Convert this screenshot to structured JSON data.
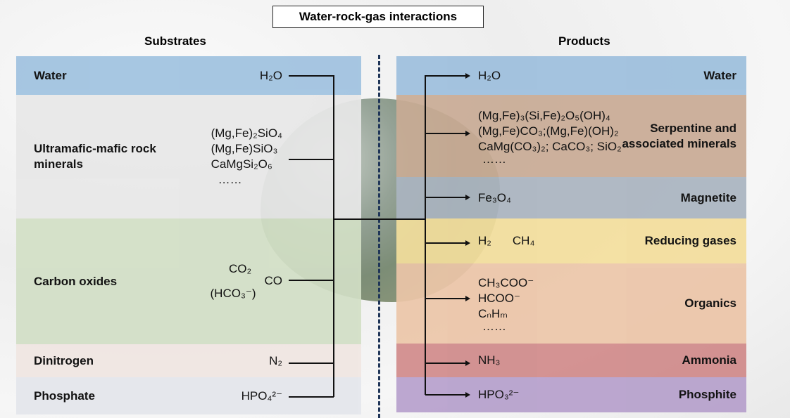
{
  "title": "Water-rock-gas interactions",
  "substrates": {
    "heading": "Substrates",
    "rows": [
      {
        "label": "Water",
        "formulas": [
          "H₂O"
        ],
        "color": "#a0c2e0"
      },
      {
        "label": "Ultramafic-mafic rock minerals",
        "formulas": [
          "(Mg,Fe)₂SiO₄",
          "(Mg,Fe)SiO₃",
          "CaMgSi₂O₆",
          "……"
        ],
        "color": "#e8e8e8"
      },
      {
        "label": "Carbon oxides",
        "formulas": [
          "CO₂",
          "(HCO₃⁻)",
          "CO"
        ],
        "color": "#d2dfc6"
      },
      {
        "label": "Dinitrogen",
        "formulas": [
          "N₂"
        ],
        "color": "#f0e6e2"
      },
      {
        "label": "Phosphate",
        "formulas": [
          "HPO₄²⁻"
        ],
        "color": "#e4e6ec"
      }
    ]
  },
  "products": {
    "heading": "Products",
    "rows": [
      {
        "label": "Water",
        "formulas": [
          "H₂O"
        ],
        "color": "#9dbfdd"
      },
      {
        "label": "Serpentine and associated minerals",
        "formulas": [
          "(Mg,Fe)₃(Si,Fe)₂O₅(OH)₄",
          "(Mg,Fe)CO₃;(Mg,Fe)(OH)₂",
          "CaMg(CO₃)₂; CaCO₃; SiO₂",
          "……"
        ],
        "color": "#c9ab95"
      },
      {
        "label": "Magnetite",
        "formulas": [
          "Fe₃O₄"
        ],
        "color": "#aab4c0"
      },
      {
        "label": "Reducing gases",
        "formulas": [
          "H₂",
          "CH₄"
        ],
        "color": "#f3de9c"
      },
      {
        "label": "Organics",
        "formulas": [
          "CH₃COO⁻",
          "HCOO⁻",
          "CₙHₘ",
          "……"
        ],
        "color": "#ecc5a8"
      },
      {
        "label": "Ammonia",
        "formulas": [
          "NH₃"
        ],
        "color": "#d08a8a"
      },
      {
        "label": "Phosphite",
        "formulas": [
          "HPO₃²⁻"
        ],
        "color": "#b6a0cc"
      }
    ]
  }
}
